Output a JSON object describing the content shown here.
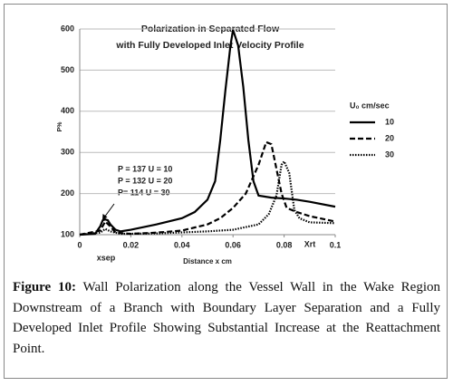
{
  "chart_data": {
    "type": "line",
    "title": [
      "Polarization in Separated Flow",
      "with Fully Developed Inlet Velocity Profile"
    ],
    "ylabel": "P%",
    "xlabel": "Distance x cm",
    "annotations": [
      "xsep",
      "Xrt",
      "P = 137  U = 10",
      "P = 132  U = 20",
      "P= 114  U = 30"
    ],
    "legend_title": "U₀ cm/sec",
    "xlim": [
      0,
      0.1
    ],
    "xticks": [
      0,
      0.02,
      0.04,
      0.06,
      0.08,
      0.1
    ],
    "ylim": [
      100,
      600
    ],
    "yticks": [
      100,
      200,
      300,
      400,
      500,
      600
    ],
    "grid": true,
    "series": [
      {
        "name": "10",
        "color": "#000000",
        "dash": "solid",
        "x": [
          0,
          0.006,
          0.008,
          0.009,
          0.01,
          0.011,
          0.012,
          0.014,
          0.016,
          0.02,
          0.03,
          0.04,
          0.045,
          0.05,
          0.053,
          0.055,
          0.057,
          0.059,
          0.06,
          0.062,
          0.064,
          0.066,
          0.068,
          0.07,
          0.075,
          0.08,
          0.085,
          0.09,
          0.1
        ],
        "values": [
          100,
          102,
          120,
          135,
          137,
          135,
          125,
          112,
          108,
          112,
          125,
          140,
          155,
          185,
          230,
          330,
          450,
          560,
          598,
          560,
          460,
          330,
          230,
          195,
          190,
          188,
          185,
          180,
          168
        ]
      },
      {
        "name": "20",
        "color": "#000000",
        "dash": "dashed",
        "x": [
          0,
          0.008,
          0.01,
          0.012,
          0.014,
          0.02,
          0.03,
          0.04,
          0.05,
          0.055,
          0.06,
          0.065,
          0.07,
          0.073,
          0.075,
          0.077,
          0.079,
          0.081,
          0.085,
          0.09,
          0.1
        ],
        "values": [
          100,
          110,
          132,
          120,
          105,
          102,
          105,
          110,
          125,
          140,
          165,
          200,
          270,
          325,
          320,
          260,
          200,
          165,
          155,
          145,
          132
        ]
      },
      {
        "name": "30",
        "color": "#000000",
        "dash": "dotted",
        "x": [
          0,
          0.008,
          0.01,
          0.012,
          0.016,
          0.03,
          0.05,
          0.06,
          0.07,
          0.074,
          0.077,
          0.079,
          0.08,
          0.082,
          0.084,
          0.086,
          0.09,
          0.1
        ],
        "values": [
          100,
          105,
          114,
          108,
          102,
          103,
          108,
          112,
          125,
          150,
          195,
          270,
          278,
          250,
          160,
          140,
          130,
          128
        ]
      }
    ]
  },
  "caption": {
    "label": "Figure 10:",
    "text": "Wall Polarization along the Vessel Wall in the Wake Region Downstream of a Branch with Boundary Layer Separation and a Fully Developed Inlet Profile Showing Substantial Increase at the Reattachment Point."
  }
}
